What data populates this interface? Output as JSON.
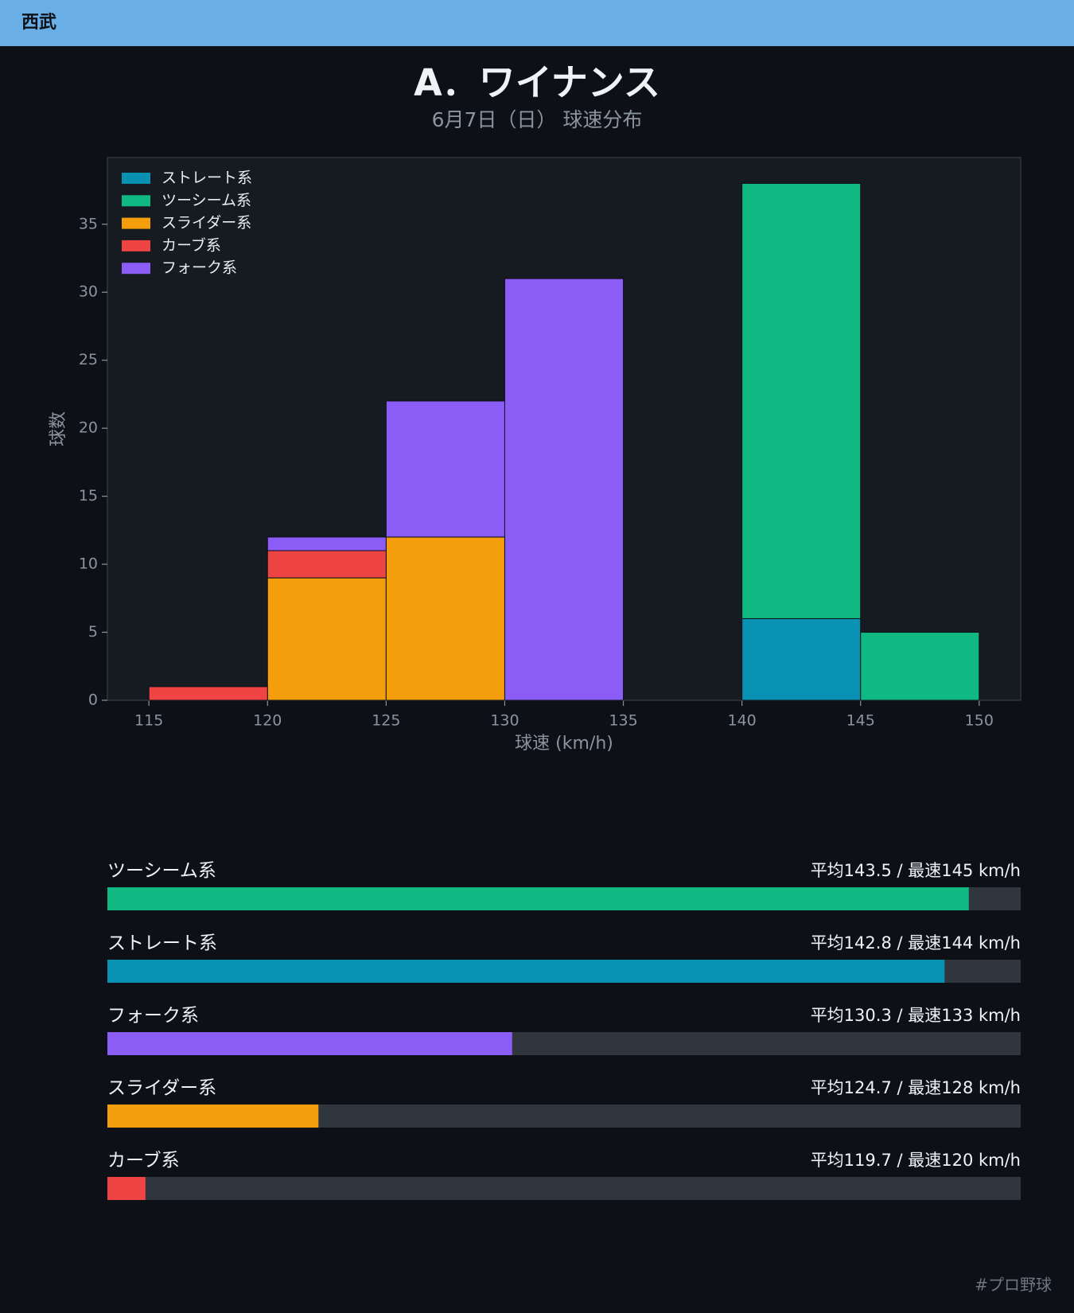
{
  "header": {
    "team": "西武"
  },
  "chart_data": {
    "type": "stacked_histogram",
    "title": "A．ワイナンス",
    "subtitle": "6月7日（日） 球速分布",
    "x_label": "球速 (km/h)",
    "y_label": "球数",
    "bins": [
      115,
      120,
      125,
      130,
      135,
      140,
      145,
      150
    ],
    "series": [
      {
        "name": "ストレート系",
        "color": "#0891b2",
        "values": [
          0,
          0,
          0,
          0,
          0,
          6,
          0
        ]
      },
      {
        "name": "ツーシーム系",
        "color": "#10b981",
        "values": [
          0,
          0,
          0,
          0,
          0,
          32,
          5
        ]
      },
      {
        "name": "スライダー系",
        "color": "#f59e0b",
        "values": [
          0,
          9,
          12,
          0,
          0,
          0,
          0
        ]
      },
      {
        "name": "カーブ系",
        "color": "#ef4444",
        "values": [
          1,
          2,
          0,
          0,
          0,
          0,
          0
        ]
      },
      {
        "name": "フォーク系",
        "color": "#8b5cf6",
        "values": [
          0,
          1,
          10,
          31,
          0,
          0,
          0
        ]
      }
    ],
    "xlim": [
      113.25,
      151.75
    ],
    "xticks": [
      115,
      120,
      125,
      130,
      135,
      140,
      145,
      150
    ],
    "ylim": [
      0,
      39.9
    ],
    "yticks": [
      0,
      5,
      10,
      15,
      20,
      25,
      30,
      35
    ],
    "legend": "upper-left"
  },
  "pitch_stats": {
    "xlim": [
      118.6,
      145
    ],
    "items": [
      {
        "name": "ツーシーム系",
        "color": "#10b981",
        "value": 143.5,
        "label": "平均143.5 / 最速145 km/h"
      },
      {
        "name": "ストレート系",
        "color": "#0891b2",
        "value": 142.8,
        "label": "平均142.8 / 最速144 km/h"
      },
      {
        "name": "フォーク系",
        "color": "#8b5cf6",
        "value": 130.3,
        "label": "平均130.3 / 最速133 km/h"
      },
      {
        "name": "スライダー系",
        "color": "#f59e0b",
        "value": 124.7,
        "label": "平均124.7 / 最速128 km/h"
      },
      {
        "name": "カーブ系",
        "color": "#ef4444",
        "value": 119.7,
        "label": "平均119.7 / 最速120 km/h"
      }
    ]
  },
  "footer": {
    "hashtag": "#プロ野球"
  }
}
